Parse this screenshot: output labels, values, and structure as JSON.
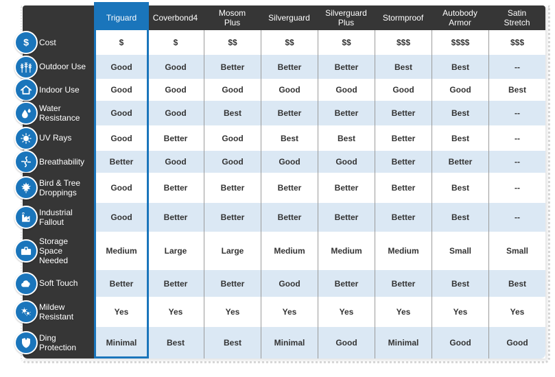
{
  "table": {
    "highlighted_column": "Triguard",
    "columns": [
      "Triguard",
      "Coverbond4",
      "Mosom\nPlus",
      "Silverguard",
      "Silverguard\nPlus",
      "Stormproof",
      "Autobody\nArmor",
      "Satin\nStretch"
    ],
    "rows": [
      {
        "label": "Cost",
        "icon": "dollar-icon",
        "values": [
          "$",
          "$",
          "$$",
          "$$",
          "$$",
          "$$$",
          "$$$$",
          "$$$"
        ]
      },
      {
        "label": "Outdoor Use",
        "icon": "trees-icon",
        "values": [
          "Good",
          "Good",
          "Better",
          "Better",
          "Better",
          "Best",
          "Best",
          "--"
        ]
      },
      {
        "label": "Indoor Use",
        "icon": "house-icon",
        "values": [
          "Good",
          "Good",
          "Good",
          "Good",
          "Good",
          "Good",
          "Good",
          "Best"
        ]
      },
      {
        "label": "Water\nResistance",
        "icon": "water-drops-icon",
        "values": [
          "Good",
          "Good",
          "Best",
          "Better",
          "Better",
          "Better",
          "Best",
          "--"
        ]
      },
      {
        "label": "UV Rays",
        "icon": "sun-icon",
        "values": [
          "Good",
          "Better",
          "Good",
          "Best",
          "Best",
          "Better",
          "Best",
          "--"
        ]
      },
      {
        "label": "Breathability",
        "icon": "airflow-icon",
        "values": [
          "Better",
          "Good",
          "Good",
          "Good",
          "Good",
          "Better",
          "Better",
          "--"
        ]
      },
      {
        "label": "Bird & Tree\nDroppings",
        "icon": "maple-leaf-icon",
        "values": [
          "Good",
          "Better",
          "Better",
          "Better",
          "Better",
          "Better",
          "Best",
          "--"
        ]
      },
      {
        "label": "Industrial\nFallout",
        "icon": "factory-icon",
        "values": [
          "Good",
          "Better",
          "Better",
          "Better",
          "Better",
          "Better",
          "Best",
          "--"
        ]
      },
      {
        "label": "Storage\nSpace\nNeeded",
        "icon": "briefcase-icon",
        "values": [
          "Medium",
          "Large",
          "Large",
          "Medium",
          "Medium",
          "Medium",
          "Small",
          "Small"
        ]
      },
      {
        "label": "Soft Touch",
        "icon": "cloud-icon",
        "values": [
          "Better",
          "Better",
          "Better",
          "Good",
          "Better",
          "Better",
          "Best",
          "Best"
        ]
      },
      {
        "label": "Mildew\nResistant",
        "icon": "spores-icon",
        "values": [
          "Yes",
          "Yes",
          "Yes",
          "Yes",
          "Yes",
          "Yes",
          "Yes",
          "Yes"
        ]
      },
      {
        "label": "Ding\nProtection",
        "icon": "shield-icon",
        "values": [
          "Minimal",
          "Best",
          "Best",
          "Minimal",
          "Good",
          "Minimal",
          "Good",
          "Good"
        ]
      }
    ]
  },
  "colors": {
    "highlight_blue": "#1a75bb",
    "header_dark": "#363636",
    "row_alt_blue": "#dbe8f4",
    "divider_gray": "#9a9a9a",
    "cell_text": "#333333"
  }
}
